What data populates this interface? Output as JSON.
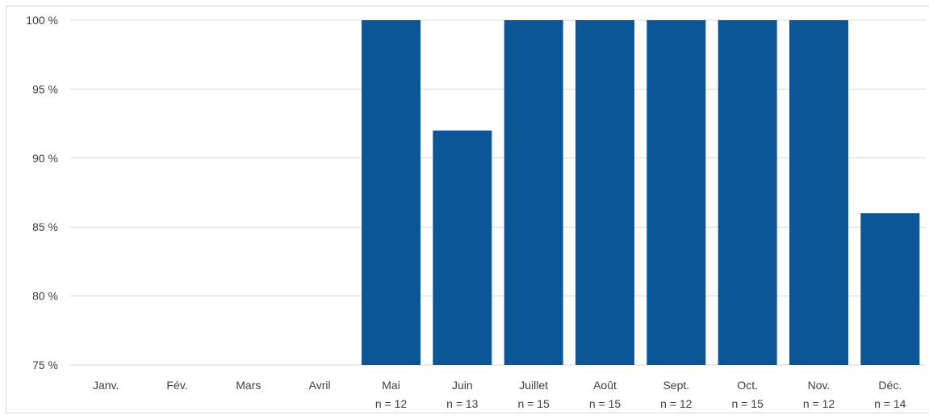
{
  "chart_data": {
    "type": "bar",
    "categories": [
      "Janv.",
      "Fév.",
      "Mars",
      "Avril",
      "Mai",
      "Juin",
      "Juillet",
      "Août",
      "Sept.",
      "Oct.",
      "Nov.",
      "Déc."
    ],
    "sample_labels": [
      "",
      "",
      "",
      "",
      "n = 12",
      "n = 13",
      "n = 15",
      "n = 15",
      "n = 12",
      "n = 15",
      "n = 12",
      "n = 14"
    ],
    "values": [
      null,
      null,
      null,
      null,
      100,
      92,
      100,
      100,
      100,
      100,
      100,
      86
    ],
    "ylim": [
      75,
      100
    ],
    "yticks": [
      75,
      80,
      85,
      90,
      95,
      100
    ],
    "ytick_labels": [
      "75 %",
      "80 %",
      "85 %",
      "90 %",
      "95 %",
      "100 %"
    ],
    "grid": true,
    "bar_color": "#0b5696",
    "grid_color": "#d9d9d9"
  }
}
